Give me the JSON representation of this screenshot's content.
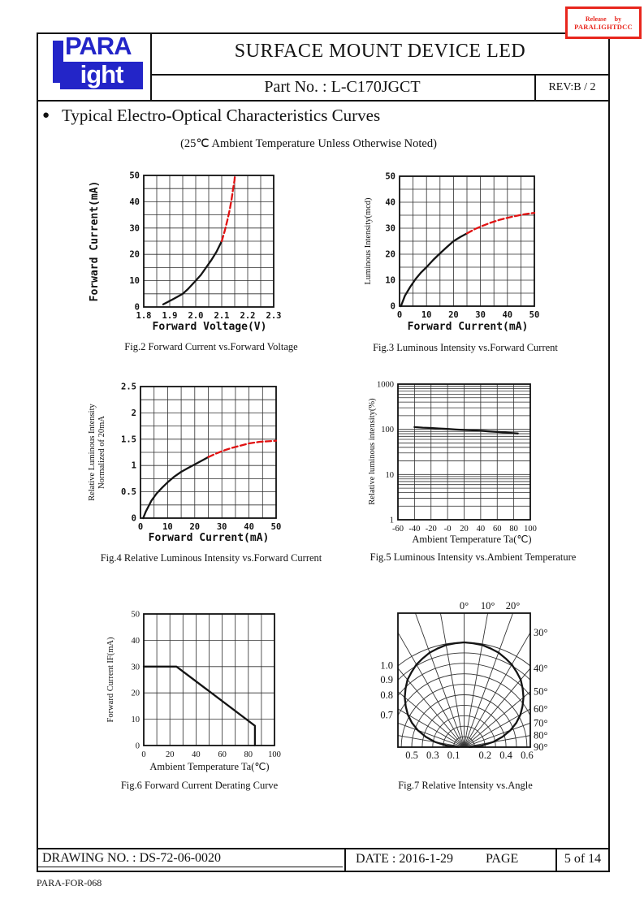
{
  "header": {
    "product_title": "SURFACE MOUNT DEVICE LED",
    "part_no": "Part No. : L-C170JGCT",
    "revision": "REV:B / 2",
    "logo_top": "PARA",
    "logo_bottom": "ight",
    "logo_color": "#2325c8"
  },
  "stamp": {
    "line1": "Release by",
    "line2": "PARALIGHTDCC",
    "color": "#e8261d"
  },
  "section": {
    "bullet": "●",
    "title": "Typical Electro-Optical Characteristics Curves",
    "subtitle": "(25℃ Ambient Temperature Unless Otherwise Noted)"
  },
  "footer": {
    "drawing_no": "DRAWING NO. : DS-72-06-0020",
    "date": "DATE : 2016-1-29",
    "page_label": "PAGE",
    "page_value": "5 of 14",
    "form_no": "PARA-FOR-068"
  },
  "chart_data": [
    {
      "id": "fig2",
      "type": "line",
      "caption": "Fig.2 Forward Current vs.Forward Voltage",
      "xlabel": "Forward Voltage(V)",
      "ylabel": "Forward Current(mA)",
      "xlim": [
        1.8,
        2.3
      ],
      "ylim": [
        0,
        50
      ],
      "xgrid_step": 0.05,
      "ygrid_step": 5,
      "xtick_values": [
        1.8,
        1.9,
        2.0,
        2.1,
        2.2,
        2.3
      ],
      "xtick_labels": [
        "1.8",
        "1.9",
        "2.0",
        "2.1",
        "2.2",
        "2.3"
      ],
      "ytick_values": [
        0,
        10,
        20,
        30,
        40,
        50
      ],
      "ytick_labels": [
        "0",
        "10",
        "20",
        "30",
        "40",
        "50"
      ],
      "series": [
        {
          "name": "typical",
          "color": "#141414",
          "dashed": false,
          "points": [
            [
              1.875,
              1
            ],
            [
              1.89,
              1.8
            ],
            [
              1.91,
              2.8
            ],
            [
              1.93,
              3.9
            ],
            [
              1.95,
              5
            ],
            [
              1.97,
              6.8
            ],
            [
              2.0,
              10
            ],
            [
              2.02,
              12.2
            ],
            [
              2.04,
              15
            ],
            [
              2.06,
              17.8
            ],
            [
              2.08,
              21
            ],
            [
              2.1,
              25
            ]
          ]
        },
        {
          "name": "extended",
          "color": "#e01212",
          "dashed": true,
          "points": [
            [
              2.1,
              25
            ],
            [
              2.112,
              29
            ],
            [
              2.122,
              33
            ],
            [
              2.131,
              37
            ],
            [
              2.138,
              41
            ],
            [
              2.144,
              45
            ],
            [
              2.149,
              48
            ],
            [
              2.151,
              50
            ]
          ]
        }
      ]
    },
    {
      "id": "fig3",
      "type": "line",
      "caption": "Fig.3  Luminous Intensity vs.Forward Current",
      "xlabel": "Forward Current(mA)",
      "ylabel": "Luminous Intensity(mcd)",
      "xlim": [
        0,
        50
      ],
      "ylim": [
        0,
        50
      ],
      "xgrid_step": 5,
      "ygrid_step": 5,
      "xtick_values": [
        0,
        10,
        20,
        30,
        40,
        50
      ],
      "xtick_labels": [
        "0",
        "10",
        "20",
        "30",
        "40",
        "50"
      ],
      "ytick_values": [
        0,
        10,
        20,
        30,
        40,
        50
      ],
      "ytick_labels": [
        "0",
        "10",
        "20",
        "30",
        "40",
        "50"
      ],
      "series": [
        {
          "name": "typical",
          "color": "#141414",
          "dashed": false,
          "points": [
            [
              0.5,
              0
            ],
            [
              2,
              4
            ],
            [
              4,
              7.5
            ],
            [
              6,
              10.5
            ],
            [
              8,
              13
            ],
            [
              10,
              15
            ],
            [
              12.5,
              17.8
            ],
            [
              15,
              20.3
            ],
            [
              17.5,
              22.7
            ],
            [
              20,
              25
            ],
            [
              22.5,
              26.6
            ],
            [
              25,
              28
            ]
          ]
        },
        {
          "name": "extended",
          "color": "#e01212",
          "dashed": true,
          "points": [
            [
              25,
              28
            ],
            [
              28,
              29.7
            ],
            [
              31,
              31
            ],
            [
              34,
              32.2
            ],
            [
              37,
              33.2
            ],
            [
              40,
              34
            ],
            [
              43,
              34.7
            ],
            [
              46,
              35.3
            ],
            [
              50,
              35.9
            ]
          ]
        }
      ]
    },
    {
      "id": "fig4",
      "type": "line",
      "caption": "Fig.4 Relative Luminous Intensity vs.Forward Current",
      "xlabel": "Forward Current(mA)",
      "ylabel": [
        "Relative Luminous Intensity",
        "Normalized of 20mA"
      ],
      "xlim": [
        0,
        50
      ],
      "ylim": [
        0,
        2.5
      ],
      "xgrid_step": 5,
      "ygrid_step": 0.25,
      "xtick_values": [
        0,
        10,
        20,
        30,
        40,
        50
      ],
      "xtick_labels": [
        "0",
        "10",
        "20",
        "30",
        "40",
        "50"
      ],
      "ytick_values": [
        0,
        0.5,
        1,
        1.5,
        2,
        2.5
      ],
      "ytick_labels": [
        "0",
        "0.5",
        "1",
        "1.5",
        "2",
        "2.5"
      ],
      "series": [
        {
          "name": "typical",
          "color": "#141414",
          "dashed": false,
          "points": [
            [
              1,
              0
            ],
            [
              2,
              0.13
            ],
            [
              4,
              0.33
            ],
            [
              6,
              0.47
            ],
            [
              8,
              0.58
            ],
            [
              10,
              0.68
            ],
            [
              12.5,
              0.79
            ],
            [
              15,
              0.88
            ],
            [
              17.5,
              0.95
            ],
            [
              20,
              1.02
            ],
            [
              22.5,
              1.09
            ],
            [
              25,
              1.16
            ]
          ]
        },
        {
          "name": "extended",
          "color": "#e01212",
          "dashed": true,
          "points": [
            [
              25,
              1.16
            ],
            [
              28,
              1.23
            ],
            [
              31,
              1.29
            ],
            [
              34,
              1.34
            ],
            [
              37,
              1.38
            ],
            [
              40,
              1.42
            ],
            [
              44,
              1.45
            ],
            [
              47,
              1.46
            ],
            [
              50,
              1.47
            ]
          ]
        }
      ]
    },
    {
      "id": "fig5",
      "type": "line",
      "logy": true,
      "caption": "Fig.5 Luminous Intensity vs.Ambient Temperature",
      "xlabel": "Ambient Temperature Ta(℃)",
      "ylabel": "Relative luminous intensity(%)",
      "xlim": [
        -60,
        100
      ],
      "ylim": [
        1,
        1000
      ],
      "xgrid_step": 20,
      "xtick_values": [
        -60,
        -40,
        -20,
        0,
        20,
        40,
        60,
        80,
        100
      ],
      "xtick_labels": [
        "-60",
        "-40",
        "-20",
        "-0",
        "20",
        "40",
        "60",
        "80",
        "100"
      ],
      "ytick_values": [
        1,
        10,
        100,
        1000
      ],
      "ytick_labels": [
        "1",
        "10",
        "100",
        "1000"
      ],
      "series": [
        {
          "name": "typical",
          "color": "#141414",
          "dashed": false,
          "points": [
            [
              -40,
              112
            ],
            [
              -30,
              109
            ],
            [
              -20,
              107
            ],
            [
              -10,
              104
            ],
            [
              0,
              102
            ],
            [
              10,
              99
            ],
            [
              20,
              97
            ],
            [
              30,
              95
            ],
            [
              40,
              93
            ],
            [
              50,
              90
            ],
            [
              60,
              88
            ],
            [
              70,
              85
            ],
            [
              85,
              81
            ]
          ]
        }
      ]
    },
    {
      "id": "fig6",
      "type": "line",
      "caption": "Fig.6 Forward Current Derating Curve",
      "xlabel": "Ambient Temperature Ta(℃)",
      "ylabel": "Forward Current IF(mA)",
      "xlim": [
        0,
        100
      ],
      "ylim": [
        0,
        50
      ],
      "xgrid_step": 10,
      "ygrid_step": 10,
      "xtick_values": [
        0,
        20,
        40,
        60,
        80,
        100
      ],
      "xtick_labels": [
        "0",
        "20",
        "40",
        "60",
        "80",
        "100"
      ],
      "ytick_values": [
        0,
        10,
        20,
        30,
        40,
        50
      ],
      "ytick_labels": [
        "0",
        "10",
        "20",
        "30",
        "40",
        "50"
      ],
      "series": [
        {
          "name": "derating",
          "color": "#141414",
          "dashed": false,
          "points": [
            [
              0,
              30
            ],
            [
              25,
              30
            ],
            [
              85,
              7.5
            ],
            [
              85,
              0
            ]
          ]
        }
      ]
    },
    {
      "id": "fig7",
      "type": "polar",
      "caption": "Fig.7 Relative Intensity vs.Angle",
      "angle_grid_step_deg": 10,
      "angle_labels_top": [
        "0°",
        "10°",
        "20°"
      ],
      "angle_labels_top_deg": [
        0,
        10,
        20
      ],
      "angle_labels_side": [
        "30°",
        "40°",
        "50°",
        "60°",
        "70°",
        "80°",
        "90°"
      ],
      "angle_labels_side_deg": [
        30,
        40,
        50,
        60,
        70,
        80,
        90
      ],
      "radial_rings": [
        0.1,
        0.2,
        0.3,
        0.4,
        0.5,
        0.6,
        0.7,
        0.8,
        0.9,
        1.0
      ],
      "left_ring_labels": [
        "1.0",
        "0.9",
        "0.8",
        "0.7"
      ],
      "left_ring_values": [
        1.0,
        0.9,
        0.8,
        0.7
      ],
      "bottom_ring_labels_left": [
        "0.5",
        "0.3",
        "0.1"
      ],
      "bottom_ring_values_left": [
        0.5,
        0.3,
        0.1
      ],
      "bottom_ring_labels_right": [
        "0.2",
        "0.4",
        "0.6"
      ],
      "bottom_ring_values_right": [
        0.2,
        0.4,
        0.6
      ],
      "curve": {
        "angles_deg": [
          0,
          5,
          10,
          15,
          20,
          25,
          30,
          35,
          40,
          45,
          50,
          55,
          60,
          65,
          70,
          75,
          80,
          85,
          90
        ],
        "relative_intensity": [
          1.0,
          0.995,
          0.99,
          0.975,
          0.96,
          0.935,
          0.91,
          0.875,
          0.84,
          0.79,
          0.74,
          0.68,
          0.62,
          0.55,
          0.47,
          0.38,
          0.28,
          0.17,
          0.05
        ],
        "color": "#141414"
      }
    }
  ]
}
